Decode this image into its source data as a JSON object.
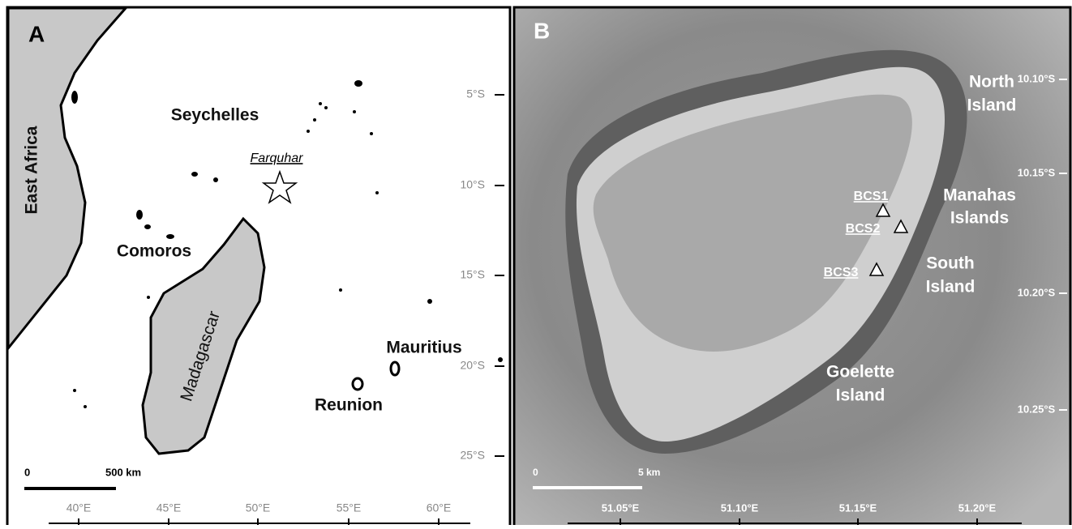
{
  "panel_a": {
    "label": "A",
    "places": [
      "East Africa",
      "Seychelles",
      "Comoros",
      "Madagascar",
      "Mauritius",
      "Reunion"
    ],
    "site": "Farquhar",
    "lat_ticks": [
      "5°S",
      "10°S",
      "15°S",
      "20°S",
      "25°S"
    ],
    "lon_ticks": [
      "40°E",
      "45°E",
      "50°E",
      "55°E",
      "60°E"
    ],
    "scale_bar": {
      "start": "0",
      "end": "500 km"
    }
  },
  "panel_b": {
    "label": "B",
    "places": [
      {
        "lines": [
          "North",
          "Island"
        ]
      },
      {
        "lines": [
          "Manahas",
          "Islands"
        ]
      },
      {
        "lines": [
          "South",
          "Island"
        ]
      },
      {
        "lines": [
          "Goelette",
          "Island"
        ]
      }
    ],
    "sites": [
      "BCS1",
      "BCS2",
      "BCS3"
    ],
    "lat_ticks": [
      "10.10°S",
      "10.15°S",
      "10.20°S",
      "10.25°S"
    ],
    "lon_ticks": [
      "51.05°E",
      "51.10°E",
      "51.15°E",
      "51.20°E"
    ],
    "scale_bar": {
      "start": "0",
      "end": "5 km"
    }
  }
}
